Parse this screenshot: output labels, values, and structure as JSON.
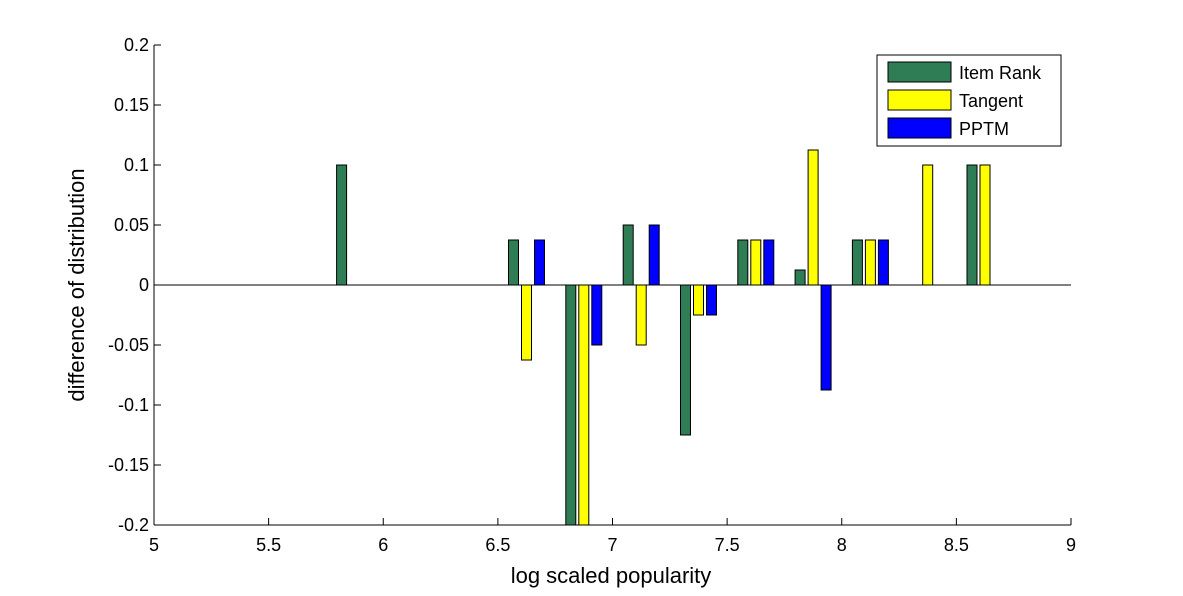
{
  "chart_data": {
    "type": "bar",
    "xlabel": "log scaled popularity",
    "ylabel": "difference of distribution",
    "xlim": [
      5,
      9
    ],
    "ylim": [
      -0.2,
      0.2
    ],
    "xticks": [
      "5",
      "5.5",
      "6",
      "6.5",
      "7",
      "7.5",
      "8",
      "8.5",
      "9"
    ],
    "yticks": [
      "0.2",
      "0.15",
      "0.1",
      "0.05",
      "0",
      "-0.05",
      "-0.1",
      "-0.15",
      "-0.2"
    ],
    "grid": false,
    "legend_position": "top-right",
    "x": [
      5.875,
      6.625,
      6.875,
      7.125,
      7.375,
      7.625,
      7.875,
      8.125,
      8.375,
      8.625
    ],
    "series": [
      {
        "name": "Item Rank",
        "color": "#2e7d55",
        "values": [
          0.1,
          0.0375,
          -0.2,
          0.05,
          -0.125,
          0.0375,
          0.0125,
          0.0375,
          0,
          0.1
        ]
      },
      {
        "name": "Tangent",
        "color": "#ffff00",
        "values": [
          0,
          -0.0625,
          -0.2,
          -0.05,
          -0.025,
          0.0375,
          0.1125,
          0.0375,
          0.1,
          0.1
        ]
      },
      {
        "name": "PPTM",
        "color": "#0000ff",
        "values": [
          0,
          0.0375,
          -0.05,
          0.05,
          -0.025,
          0.0375,
          -0.0875,
          0.0375,
          0,
          0
        ]
      }
    ]
  }
}
